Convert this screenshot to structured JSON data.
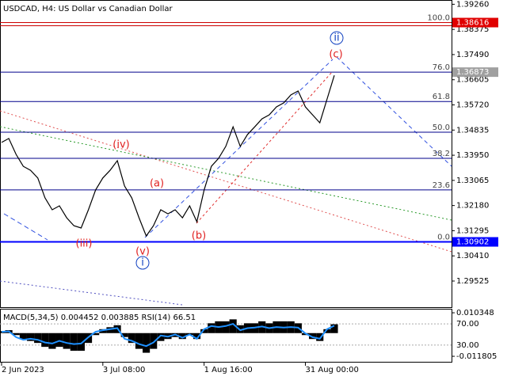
{
  "chart_data": {
    "type": "line",
    "title": "USDCAD, H4:  US Dollar vs Canadian Dollar",
    "categories": [
      "2 Jun 2023",
      null,
      null,
      null,
      null,
      null,
      null,
      null,
      null,
      null,
      null,
      null,
      null,
      null,
      "3 Jul 08:00",
      null,
      null,
      null,
      null,
      null,
      null,
      null,
      null,
      null,
      null,
      null,
      null,
      null,
      "1 Aug 16:00",
      null,
      null,
      null,
      null,
      null,
      null,
      null,
      null,
      null,
      null,
      null,
      null,
      null,
      "31 Aug 00:00",
      null,
      null,
      null,
      null
    ],
    "series": [
      {
        "color": "#000000",
        "values": [
          1.344,
          1.3454,
          1.3398,
          1.3356,
          1.3342,
          1.3315,
          1.3245,
          1.3203,
          1.3217,
          1.3175,
          1.3147,
          1.3139,
          1.3203,
          1.3273,
          1.3315,
          1.3342,
          1.3376,
          1.3287,
          1.3245,
          1.3175,
          1.3111,
          1.3147,
          1.3203,
          1.3189,
          1.3203,
          1.3175,
          1.3217,
          1.3161,
          1.3273,
          1.3356,
          1.3384,
          1.3426,
          1.3495,
          1.3426,
          1.3468,
          1.3495,
          1.3523,
          1.3537,
          1.3565,
          1.3579,
          1.3607,
          1.3621,
          1.3565,
          1.3537,
          1.3509,
          1.3593,
          1.3676
        ]
      }
    ],
    "ylim": [
      1.2855,
      1.3941
    ],
    "yticks": [
      {
        "value": 1.3926,
        "label": "1.39260"
      },
      1.38375,
      {
        "value": 1.3749,
        "label": "1.37490"
      },
      1.36605,
      {
        "value": 1.3572,
        "label": "1.35720"
      },
      1.34835,
      {
        "value": 1.3395,
        "label": "1.33950"
      },
      1.33065,
      {
        "value": 1.3218,
        "label": "1.32180"
      },
      1.31295,
      {
        "value": 1.3041,
        "label": "1.30410"
      },
      1.29525
    ],
    "fib_levels": [
      {
        "label": "100.0",
        "value": 1.38616,
        "color": "#cc0000"
      },
      {
        "label": "76.0",
        "value": 1.36873,
        "color": "#00008b"
      },
      {
        "label": "61.8",
        "value": 1.3584,
        "color": "#00008b"
      },
      {
        "label": "50.0",
        "value": 1.3476,
        "color": "#00008b"
      },
      {
        "label": "38.2",
        "value": 1.3384,
        "color": "#00008b"
      },
      {
        "label": "23.6",
        "value": 1.3273,
        "color": "#00008b"
      },
      {
        "label": "0.0",
        "value": 1.30902,
        "color": "#0000ff"
      }
    ],
    "price_tags": [
      {
        "value": 1.38616,
        "color": "#e00000"
      },
      {
        "value": 1.36873,
        "color": "#a0a0a0"
      },
      {
        "value": 1.30902,
        "color": "#0000ff"
      }
    ],
    "wave_labels": [
      "ii",
      "(c)",
      "(iv)",
      "(a)",
      "(iii)",
      "(b)",
      "(v)",
      "i"
    ],
    "indicator": {
      "label": "MACD(5,34,5) 0.004452 0.003885 RSI(14) 66.51",
      "ylim": [
        -0.0142,
        0.0128
      ],
      "yticks": [
        0.010348,
        -0.011805
      ],
      "y2lim": [
        0,
        100
      ],
      "y2ticks": [
        {
          "value": 70,
          "label": "70.00"
        },
        {
          "value": 30,
          "label": "30.00"
        }
      ],
      "macd": [
        0.001,
        0.0015,
        -0.001,
        -0.003,
        -0.004,
        -0.005,
        -0.007,
        -0.008,
        -0.007,
        -0.008,
        -0.009,
        -0.009,
        -0.005,
        -0.001,
        0.002,
        0.003,
        0.004,
        -0.002,
        -0.005,
        -0.008,
        -0.01,
        -0.008,
        -0.004,
        -0.003,
        -0.002,
        -0.003,
        -0.001,
        -0.003,
        0.002,
        0.005,
        0.006,
        0.006,
        0.007,
        0.004,
        0.005,
        0.005,
        0.006,
        0.005,
        0.006,
        0.006,
        0.006,
        0.005,
        -0.001,
        -0.003,
        -0.004,
        0.002,
        0.0045
      ],
      "rsi": [
        55,
        56,
        45,
        40,
        42,
        40,
        35,
        33,
        38,
        34,
        32,
        33,
        45,
        55,
        58,
        60,
        62,
        42,
        38,
        32,
        28,
        35,
        48,
        46,
        50,
        44,
        50,
        42,
        60,
        66,
        64,
        66,
        70,
        58,
        62,
        63,
        65,
        62,
        64,
        63,
        64,
        63,
        52,
        45,
        42,
        60,
        66.51
      ]
    }
  }
}
